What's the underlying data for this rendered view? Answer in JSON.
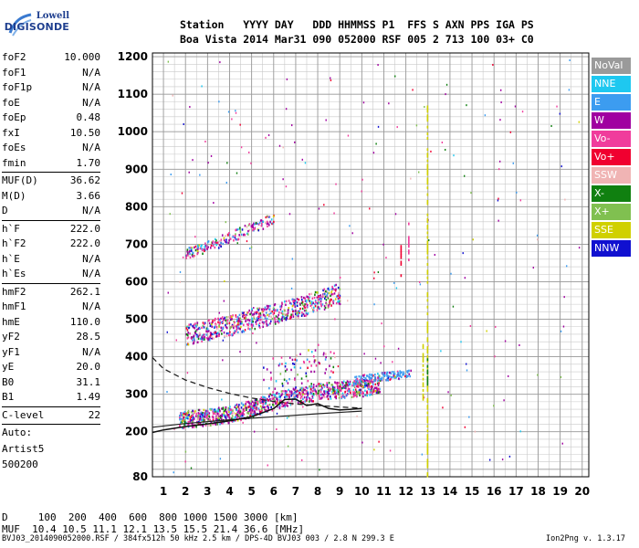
{
  "logo": {
    "line1": "Lowell",
    "line2": "DIGISONDE"
  },
  "header": {
    "row1": "Station   YYYY DAY   DDD HHMMSS P1  FFS S AXN PPS IGA PS",
    "row2": "Boa Vista 2014 Mar31 090 052000 RSF 005 2 713 100 03+ C0"
  },
  "params": [
    {
      "name": "foF2",
      "value": "10.000"
    },
    {
      "name": "foF1",
      "value": "N/A"
    },
    {
      "name": "foF1p",
      "value": "N/A"
    },
    {
      "name": "foE",
      "value": "N/A"
    },
    {
      "name": "foEp",
      "value": "0.48"
    },
    {
      "name": "fxI",
      "value": "10.50"
    },
    {
      "name": "foEs",
      "value": "N/A"
    },
    {
      "name": "fmin",
      "value": "1.70"
    },
    {
      "sep": true
    },
    {
      "name": "MUF(D)",
      "value": "36.62"
    },
    {
      "name": "M(D)",
      "value": "3.66"
    },
    {
      "name": "D",
      "value": "N/A"
    },
    {
      "sep": true
    },
    {
      "name": "h`F",
      "value": "222.0"
    },
    {
      "name": "h`F2",
      "value": "222.0"
    },
    {
      "name": "h`E",
      "value": "N/A"
    },
    {
      "name": "h`Es",
      "value": "N/A"
    },
    {
      "sep": true
    },
    {
      "name": "hmF2",
      "value": "262.1"
    },
    {
      "name": "hmF1",
      "value": "N/A"
    },
    {
      "name": "hmE",
      "value": "110.0"
    },
    {
      "name": "yF2",
      "value": "28.5"
    },
    {
      "name": "yF1",
      "value": "N/A"
    },
    {
      "name": "yE",
      "value": "20.0"
    },
    {
      "name": "B0",
      "value": "31.1"
    },
    {
      "name": "B1",
      "value": "1.49"
    },
    {
      "sep": true
    },
    {
      "name": "C-level",
      "value": "22"
    },
    {
      "sep": true
    },
    {
      "text": "Auto:"
    },
    {
      "text": "Artist5"
    },
    {
      "text": "500200"
    }
  ],
  "legend": [
    {
      "label": "NoVal",
      "color": "#9a9a9a"
    },
    {
      "label": "NNE",
      "color": "#1ec8f0"
    },
    {
      "label": "E",
      "color": "#3c9cf0"
    },
    {
      "label": "W",
      "color": "#a000a0"
    },
    {
      "label": "Vo-",
      "color": "#f03c9c"
    },
    {
      "label": "Vo+",
      "color": "#f00030"
    },
    {
      "label": "SSW",
      "color": "#f0b4b4"
    },
    {
      "label": "X-",
      "color": "#108010"
    },
    {
      "label": "X+",
      "color": "#80c050"
    },
    {
      "label": "SSE",
      "color": "#d0d000"
    },
    {
      "label": "NNW",
      "color": "#1010d0"
    }
  ],
  "bottom": {
    "d_row": "D     100  200  400  600  800 1000 1500 3000 [km]",
    "muf_row": "MUF  10.4 10.5 11.1 12.1 13.5 15.5 21.4 36.6 [MHz]"
  },
  "footer": {
    "left": "BVJ03_2014090052000.RSF / 384fx512h 50 kHz 2.5 km / DPS-4D BVJ03 003 / 2.8 N 299.3 E",
    "right": "Ion2Png v. 1.3.17"
  },
  "chart_data": {
    "type": "scatter",
    "x_ticks": [
      "1",
      "2",
      "3",
      "4",
      "5",
      "6",
      "7",
      "8",
      "9",
      "10",
      "11",
      "12",
      "13",
      "14",
      "15",
      "16",
      "17",
      "18",
      "19",
      "20"
    ],
    "y_ticks": [
      "80",
      "200",
      "300",
      "400",
      "500",
      "600",
      "700",
      "800",
      "900",
      "1000",
      "1100",
      "1200"
    ],
    "xlim": [
      0.5,
      20.3
    ],
    "ylim": [
      80,
      1210
    ],
    "xlabel": "",
    "ylabel": "",
    "grid": true,
    "traces": [
      {
        "name": "F-trace",
        "x": [
          1.7,
          3,
          4,
          5,
          6,
          7,
          8,
          9,
          10,
          10.8
        ],
        "y": [
          225,
          232,
          240,
          255,
          275,
          290,
          300,
          305,
          310,
          320
        ]
      },
      {
        "name": "2F-trace",
        "x": [
          2,
          3,
          4,
          5,
          6,
          7,
          8,
          9
        ],
        "y": [
          450,
          462,
          475,
          492,
          505,
          520,
          540,
          560
        ]
      },
      {
        "name": "3F-trace",
        "x": [
          2,
          3,
          4,
          5,
          6
        ],
        "y": [
          670,
          690,
          715,
          740,
          765
        ]
      },
      {
        "name": "E-trace",
        "x": [
          9.6,
          10.2,
          11,
          11.8,
          12.2
        ],
        "y": [
          335,
          340,
          345,
          350,
          355
        ]
      }
    ],
    "profile_dashed": {
      "x": [
        0.5,
        1,
        2,
        3,
        4,
        5,
        6,
        7,
        8,
        9,
        10
      ],
      "y": [
        398,
        368,
        338,
        318,
        302,
        290,
        281,
        274,
        270,
        266,
        263
      ]
    },
    "profile_solid": {
      "x": [
        0.5,
        1,
        2,
        3,
        4,
        5,
        6,
        6.5,
        7,
        7.5,
        8,
        8.5,
        9,
        10
      ],
      "y": [
        198,
        205,
        214,
        221,
        229,
        240,
        262,
        286,
        287,
        270,
        275,
        262,
        258,
        262
      ]
    },
    "profile_line2": {
      "x": [
        0.5,
        2,
        4,
        6,
        8,
        10
      ],
      "y": [
        212,
        222,
        232,
        240,
        248,
        255
      ]
    }
  }
}
